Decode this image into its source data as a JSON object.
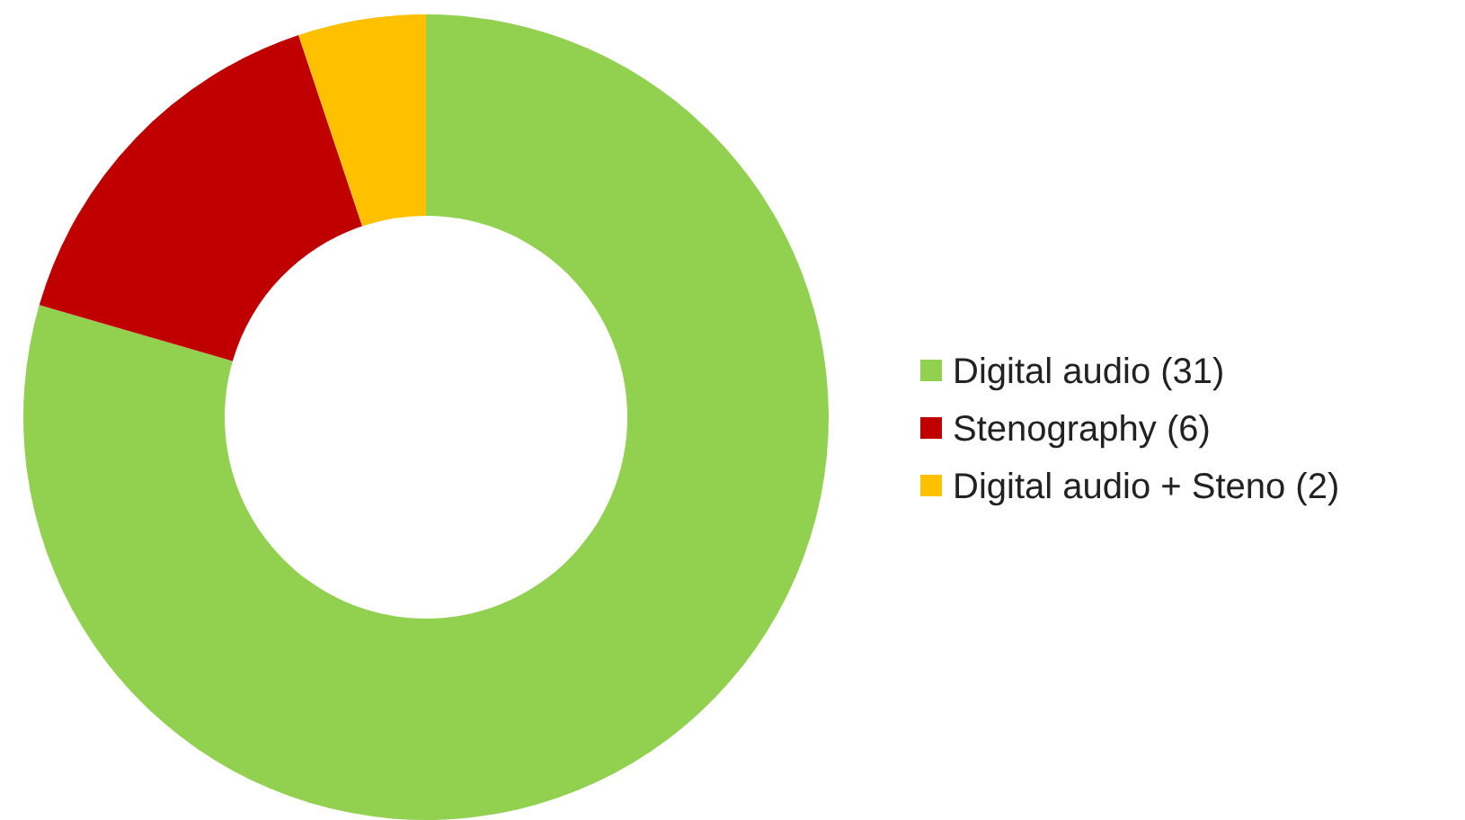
{
  "chart_data": {
    "type": "donut",
    "categories": [
      "Digital audio (31)",
      "Stenography (6)",
      "Digital audio + Steno (2)"
    ],
    "values": [
      31,
      6,
      2
    ],
    "colors": [
      "#92d050",
      "#c00000",
      "#ffc000"
    ],
    "legend": "right"
  }
}
